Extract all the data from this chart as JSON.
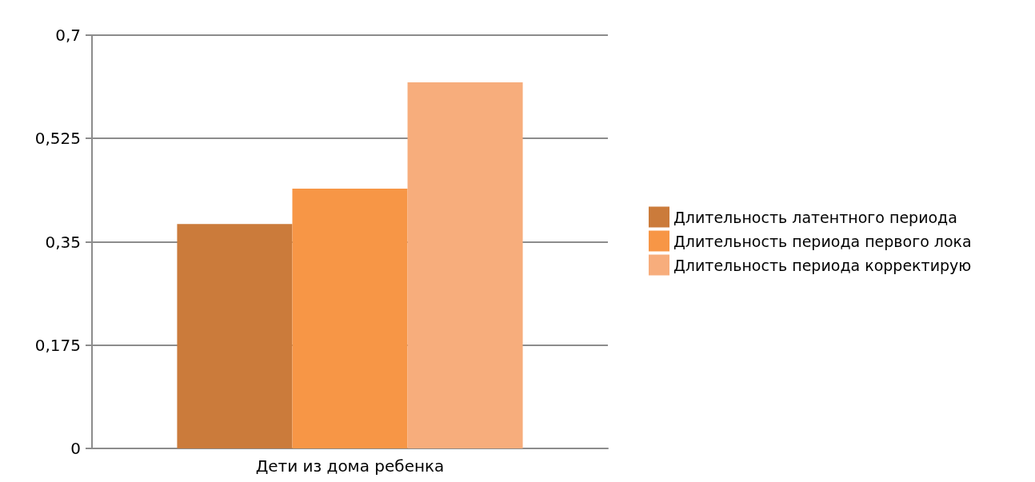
{
  "chart_data": {
    "type": "bar",
    "categories": [
      "Дети из дома ребенка"
    ],
    "series": [
      {
        "name": "Длительность латентного периода",
        "color": "#cb7b3b",
        "values": [
          0.38
        ]
      },
      {
        "name": "Длительность периода первого лока",
        "color": "#f79646",
        "values": [
          0.44
        ]
      },
      {
        "name": "Длительность периода корректирую",
        "color": "#f7ad7c",
        "values": [
          0.62
        ]
      }
    ],
    "ylim": [
      0,
      0.7
    ],
    "yticks": [
      0,
      {
        "value": 0.175,
        "label": "0,175"
      },
      {
        "value": 0.35,
        "label": "0,35"
      },
      {
        "value": 0.525,
        "label": "0,525"
      },
      {
        "value": 0.7,
        "label": "0,7"
      }
    ],
    "grid": "y",
    "legend": "right"
  }
}
